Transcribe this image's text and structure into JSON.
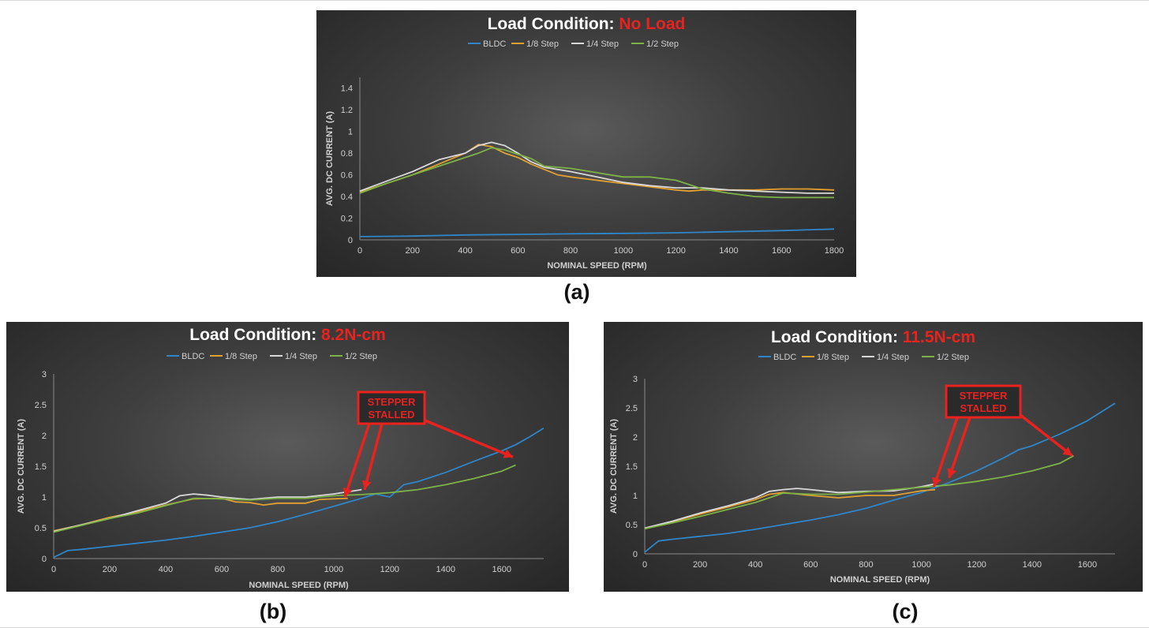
{
  "figure": {
    "captions": [
      "(a)",
      "(b)",
      "(c)"
    ],
    "legend_colors": {
      "BLDC": "#2e86c8",
      "1/8 Step": "#e0a030",
      "1/4 Step": "#d9d9d9",
      "1/2 Step": "#7db346"
    },
    "accent_red": "#e8221e"
  },
  "chart_data": [
    {
      "type": "line",
      "title_prefix": "Load Condition: ",
      "title_highlight": "No Load",
      "xlabel": "NOMINAL SPEED (RPM)",
      "ylabel": "AVG. DC CURRENT (A)",
      "xlim": [
        0,
        1800
      ],
      "ylim": [
        0,
        1.5
      ],
      "xticks": [
        0,
        200,
        400,
        600,
        800,
        1000,
        1200,
        1400,
        1600,
        1800
      ],
      "yticks": [
        0,
        0.2,
        0.4,
        0.6,
        0.8,
        1,
        1.2,
        1.4
      ],
      "ytick_labels": [
        "0",
        "0.2",
        "0.4",
        "0.6",
        "0.8",
        "1",
        "1.2",
        "1.4"
      ],
      "legend": [
        "BLDC",
        "1/8 Step",
        "1/4 Step",
        "1/2 Step"
      ],
      "legend_position": "top",
      "series": [
        {
          "name": "BLDC",
          "color": "#2e86c8",
          "x": [
            0,
            200,
            400,
            600,
            800,
            1000,
            1200,
            1400,
            1600,
            1800
          ],
          "y": [
            0.03,
            0.035,
            0.045,
            0.05,
            0.055,
            0.06,
            0.065,
            0.075,
            0.085,
            0.1
          ]
        },
        {
          "name": "1/8 Step",
          "color": "#e0a030",
          "x": [
            0,
            100,
            200,
            300,
            400,
            450,
            500,
            550,
            600,
            650,
            700,
            750,
            800,
            900,
            1000,
            1100,
            1200,
            1250,
            1300,
            1400,
            1500,
            1600,
            1700,
            1800
          ],
          "y": [
            0.44,
            0.52,
            0.6,
            0.7,
            0.8,
            0.88,
            0.86,
            0.8,
            0.76,
            0.7,
            0.65,
            0.6,
            0.58,
            0.55,
            0.52,
            0.49,
            0.46,
            0.45,
            0.46,
            0.46,
            0.46,
            0.47,
            0.47,
            0.46
          ]
        },
        {
          "name": "1/4 Step",
          "color": "#d9d9d9",
          "x": [
            0,
            100,
            200,
            300,
            400,
            450,
            500,
            550,
            600,
            650,
            700,
            800,
            900,
            1000,
            1100,
            1200,
            1300,
            1400,
            1500,
            1600,
            1700,
            1800
          ],
          "y": [
            0.45,
            0.54,
            0.63,
            0.74,
            0.8,
            0.87,
            0.9,
            0.87,
            0.8,
            0.72,
            0.67,
            0.63,
            0.58,
            0.53,
            0.5,
            0.48,
            0.48,
            0.46,
            0.45,
            0.44,
            0.43,
            0.43
          ]
        },
        {
          "name": "1/2 Step",
          "color": "#7db346",
          "x": [
            0,
            100,
            200,
            300,
            400,
            450,
            500,
            550,
            600,
            650,
            700,
            800,
            900,
            1000,
            1100,
            1200,
            1300,
            1400,
            1500,
            1600,
            1700,
            1800
          ],
          "y": [
            0.43,
            0.52,
            0.6,
            0.68,
            0.76,
            0.8,
            0.85,
            0.83,
            0.79,
            0.75,
            0.68,
            0.66,
            0.62,
            0.58,
            0.58,
            0.55,
            0.47,
            0.43,
            0.4,
            0.39,
            0.39,
            0.39
          ]
        }
      ]
    },
    {
      "type": "line",
      "title_prefix": "Load Condition: ",
      "title_highlight": "8.2N-cm",
      "xlabel": "NOMINAL SPEED (RPM)",
      "ylabel": "AVG. DC CURRENT (A)",
      "xlim": [
        0,
        1750
      ],
      "ylim": [
        0,
        3
      ],
      "xticks": [
        0,
        200,
        400,
        600,
        800,
        1000,
        1200,
        1400,
        1600
      ],
      "yticks": [
        0,
        0.5,
        1,
        1.5,
        2,
        2.5,
        3
      ],
      "ytick_labels": [
        "0",
        "0.5",
        "1",
        "1.5",
        "2",
        "2.5",
        "3"
      ],
      "legend": [
        "BLDC",
        "1/8 Step",
        "1/4 Step",
        "1/2 Step"
      ],
      "legend_position": "top",
      "annotation": {
        "lines": [
          "STEPPER",
          "STALLED"
        ],
        "arrow_targets": [
          [
            1040,
            1.0
          ],
          [
            1110,
            1.12
          ],
          [
            1640,
            1.65
          ]
        ]
      },
      "series": [
        {
          "name": "BLDC",
          "color": "#2e86c8",
          "x": [
            0,
            50,
            100,
            200,
            300,
            400,
            500,
            600,
            700,
            800,
            900,
            1000,
            1100,
            1150,
            1200,
            1250,
            1300,
            1400,
            1500,
            1600,
            1650,
            1700,
            1750
          ],
          "y": [
            0.02,
            0.13,
            0.15,
            0.2,
            0.25,
            0.3,
            0.36,
            0.43,
            0.5,
            0.6,
            0.72,
            0.85,
            0.98,
            1.05,
            1.0,
            1.2,
            1.25,
            1.4,
            1.58,
            1.75,
            1.85,
            1.98,
            2.12
          ]
        },
        {
          "name": "1/8 Step",
          "color": "#e0a030",
          "x": [
            0,
            100,
            200,
            300,
            400,
            500,
            600,
            650,
            700,
            750,
            800,
            900,
            950,
            1000,
            1050
          ],
          "y": [
            0.45,
            0.55,
            0.67,
            0.76,
            0.87,
            0.97,
            0.98,
            0.92,
            0.91,
            0.87,
            0.9,
            0.9,
            0.96,
            0.97,
            0.98
          ]
        },
        {
          "name": "1/4 Step",
          "color": "#d9d9d9",
          "x": [
            0,
            100,
            200,
            300,
            400,
            450,
            500,
            550,
            600,
            650,
            700,
            800,
            900,
            1000,
            1100
          ],
          "y": [
            0.44,
            0.55,
            0.65,
            0.78,
            0.9,
            1.02,
            1.05,
            1.03,
            1.0,
            0.98,
            0.96,
            1.0,
            1.0,
            1.05,
            1.12
          ]
        },
        {
          "name": "1/2 Step",
          "color": "#7db346",
          "x": [
            0,
            100,
            200,
            300,
            400,
            450,
            500,
            600,
            700,
            800,
            900,
            1000,
            1100,
            1200,
            1300,
            1400,
            1500,
            1600,
            1650
          ],
          "y": [
            0.43,
            0.54,
            0.65,
            0.74,
            0.86,
            0.92,
            0.98,
            0.97,
            0.95,
            0.98,
            0.98,
            1.02,
            1.04,
            1.07,
            1.12,
            1.2,
            1.3,
            1.42,
            1.52
          ]
        }
      ]
    },
    {
      "type": "line",
      "title_prefix": "Load Condition: ",
      "title_highlight": "11.5N-cm",
      "xlabel": "NOMINAL SPEED (RPM)",
      "ylabel": "AVG. DC CURRENT (A)",
      "xlim": [
        0,
        1700
      ],
      "ylim": [
        0,
        3
      ],
      "xticks": [
        0,
        200,
        400,
        600,
        800,
        1000,
        1200,
        1400,
        1600
      ],
      "yticks": [
        0,
        0.5,
        1,
        1.5,
        2,
        2.5,
        3
      ],
      "ytick_labels": [
        "0",
        "0.5",
        "1",
        "1.5",
        "2",
        "2.5",
        "3"
      ],
      "legend": [
        "BLDC",
        "1/8 Step",
        "1/4 Step",
        "1/2 Step"
      ],
      "legend_position": "top",
      "annotation": {
        "lines": [
          "STEPPER",
          "STALLED"
        ],
        "arrow_targets": [
          [
            1045,
            1.15
          ],
          [
            1100,
            1.3
          ],
          [
            1545,
            1.68
          ]
        ]
      },
      "series": [
        {
          "name": "BLDC",
          "color": "#2e86c8",
          "x": [
            0,
            50,
            100,
            200,
            300,
            400,
            500,
            600,
            700,
            800,
            900,
            1000,
            1100,
            1200,
            1300,
            1350,
            1400,
            1500,
            1600,
            1700
          ],
          "y": [
            0.03,
            0.22,
            0.25,
            0.3,
            0.35,
            0.42,
            0.5,
            0.58,
            0.67,
            0.78,
            0.92,
            1.05,
            1.22,
            1.42,
            1.65,
            1.78,
            1.85,
            2.05,
            2.28,
            2.58
          ]
        },
        {
          "name": "1/8 Step",
          "color": "#e0a030",
          "x": [
            0,
            100,
            200,
            300,
            400,
            450,
            500,
            600,
            700,
            800,
            900,
            1000,
            1050
          ],
          "y": [
            0.43,
            0.55,
            0.68,
            0.8,
            0.93,
            1.02,
            1.05,
            1.0,
            0.96,
            1.0,
            1.0,
            1.08,
            1.1
          ]
        },
        {
          "name": "1/4 Step",
          "color": "#d9d9d9",
          "x": [
            0,
            100,
            200,
            300,
            400,
            450,
            500,
            550,
            600,
            700,
            800,
            900,
            1000,
            1050
          ],
          "y": [
            0.44,
            0.56,
            0.7,
            0.82,
            0.96,
            1.07,
            1.1,
            1.12,
            1.1,
            1.05,
            1.07,
            1.08,
            1.15,
            1.2
          ]
        },
        {
          "name": "1/2 Step",
          "color": "#7db346",
          "x": [
            0,
            100,
            200,
            300,
            400,
            450,
            500,
            600,
            700,
            800,
            900,
            1000,
            1100,
            1200,
            1300,
            1400,
            1500,
            1550
          ],
          "y": [
            0.43,
            0.53,
            0.64,
            0.76,
            0.88,
            0.96,
            1.04,
            1.02,
            1.02,
            1.06,
            1.1,
            1.14,
            1.18,
            1.24,
            1.32,
            1.42,
            1.55,
            1.68
          ]
        }
      ]
    }
  ]
}
